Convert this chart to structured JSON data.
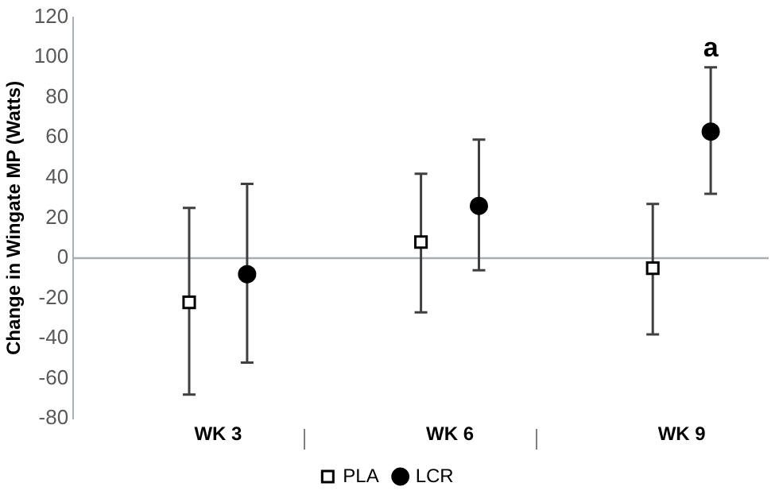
{
  "chart_data": {
    "type": "scatter",
    "ylabel": "Change in Wingate MP (Watts)",
    "categories": [
      "WK 3",
      "WK 6",
      "WK 9"
    ],
    "series": [
      {
        "name": "PLA",
        "color": "#000000",
        "marker": "square",
        "values": [
          -22,
          8,
          -5
        ],
        "errors": [
          [
            -68,
            25
          ],
          [
            -27,
            42
          ],
          [
            -38,
            27
          ]
        ]
      },
      {
        "name": "LCR",
        "color": "#000000",
        "marker": "circle",
        "values": [
          -8,
          26,
          63
        ],
        "errors": [
          [
            -52,
            37
          ],
          [
            -6,
            59
          ],
          [
            32,
            95
          ]
        ]
      }
    ],
    "ylim": [
      -80,
      120
    ],
    "yticks": [
      -80,
      -60,
      -40,
      -20,
      0,
      20,
      40,
      60,
      80,
      100,
      120
    ],
    "annotations": [
      "a"
    ],
    "ref_lines": [
      {
        "axis": "y",
        "value": 0,
        "color": "#a6b0bb"
      }
    ],
    "legend": "bottom"
  }
}
